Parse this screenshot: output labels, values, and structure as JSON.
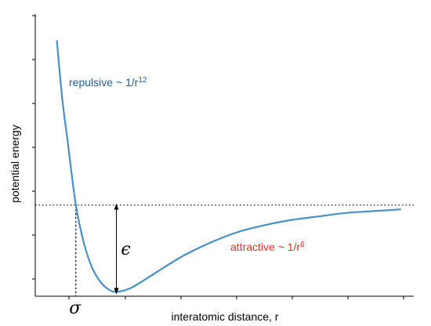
{
  "chart_data": {
    "type": "line",
    "xlabel": "interatomic distance, r",
    "ylabel": "potential energy",
    "xlim": [
      0.85,
      2.25
    ],
    "ylim": [
      -1.05,
      2.2
    ],
    "tick_labels_shown": false,
    "grid": false,
    "series": [
      {
        "color": "#4a90c4",
        "x": [
          0.93,
          0.95,
          0.97,
          1.0,
          1.03,
          1.06,
          1.09,
          1.12,
          1.15,
          1.2,
          1.25,
          1.3,
          1.4,
          1.5,
          1.6,
          1.7,
          1.8,
          1.9,
          2.0,
          2.1,
          2.2
        ],
        "y": [
          1.89,
          1.22,
          0.73,
          0.0,
          -0.44,
          -0.72,
          -0.88,
          -0.97,
          -1.0,
          -0.96,
          -0.87,
          -0.77,
          -0.58,
          -0.43,
          -0.31,
          -0.23,
          -0.17,
          -0.13,
          -0.09,
          -0.07,
          -0.05
        ]
      }
    ],
    "reference_line": {
      "y": 0.0,
      "style": "dotted",
      "color": "#000000"
    },
    "sigma": {
      "x": 1.0,
      "label": "σ"
    },
    "epsilon": {
      "x": 1.15,
      "from_y": -1.0,
      "to_y": 0.0,
      "label": "ϵ"
    },
    "annotations": {
      "repulsive": {
        "text": "repulsive ~ 1/r",
        "sup": "12",
        "color": "#1f5f9a"
      },
      "attractive": {
        "text": "attractive ~ 1/r",
        "sup": "6",
        "color": "#e8322b"
      }
    }
  }
}
